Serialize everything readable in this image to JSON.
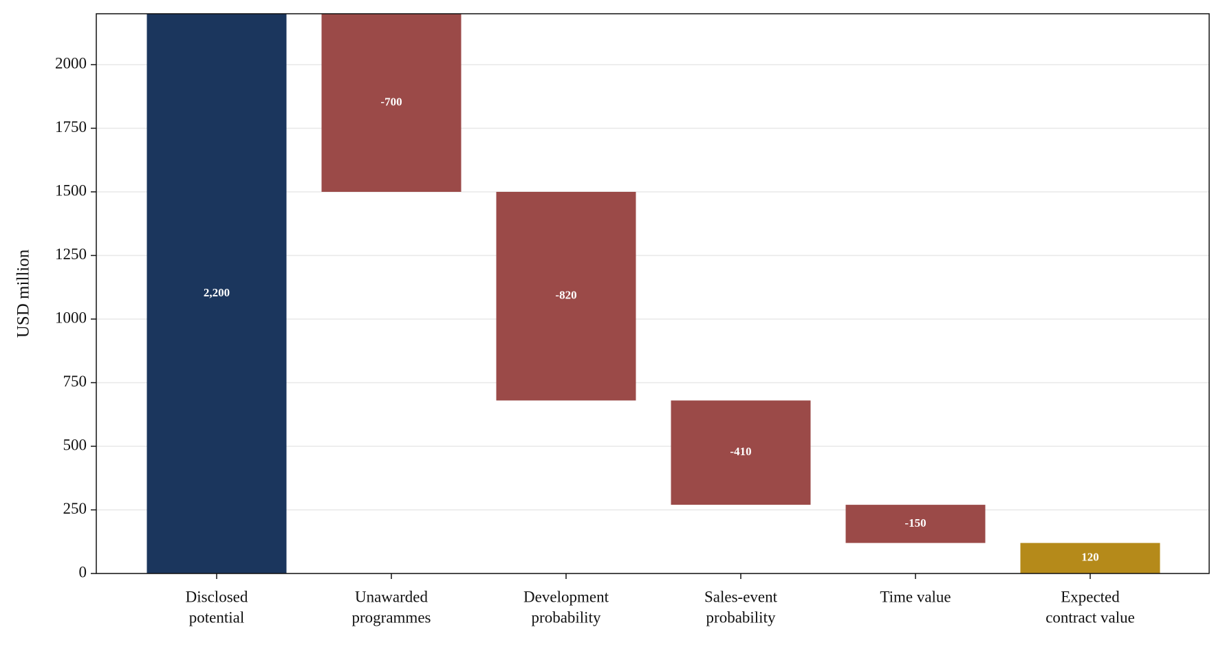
{
  "chart_data": {
    "type": "waterfall",
    "y_label": "USD million",
    "categories": [
      [
        "Disclosed",
        "potential"
      ],
      [
        "Unawarded",
        "programmes"
      ],
      [
        "Development",
        "probability"
      ],
      [
        "Sales-event",
        "probability"
      ],
      [
        "Time value"
      ],
      [
        "Expected",
        "contract value"
      ]
    ],
    "measures": [
      "absolute",
      "relative",
      "relative",
      "relative",
      "relative",
      "total"
    ],
    "values": [
      2200,
      -700,
      -820,
      -410,
      -150,
      120
    ],
    "value_labels": [
      "2,200",
      "-700",
      "-820",
      "-410",
      "-150",
      "120"
    ],
    "colors": [
      "#1b365d",
      "#9b4a48",
      "#9b4a48",
      "#9b4a48",
      "#9b4a48",
      "#b58a1a"
    ],
    "ylim": [
      0,
      2200
    ],
    "yticks": [
      0,
      250,
      500,
      750,
      1000,
      1250,
      1500,
      1750,
      2000
    ],
    "grid": true
  }
}
